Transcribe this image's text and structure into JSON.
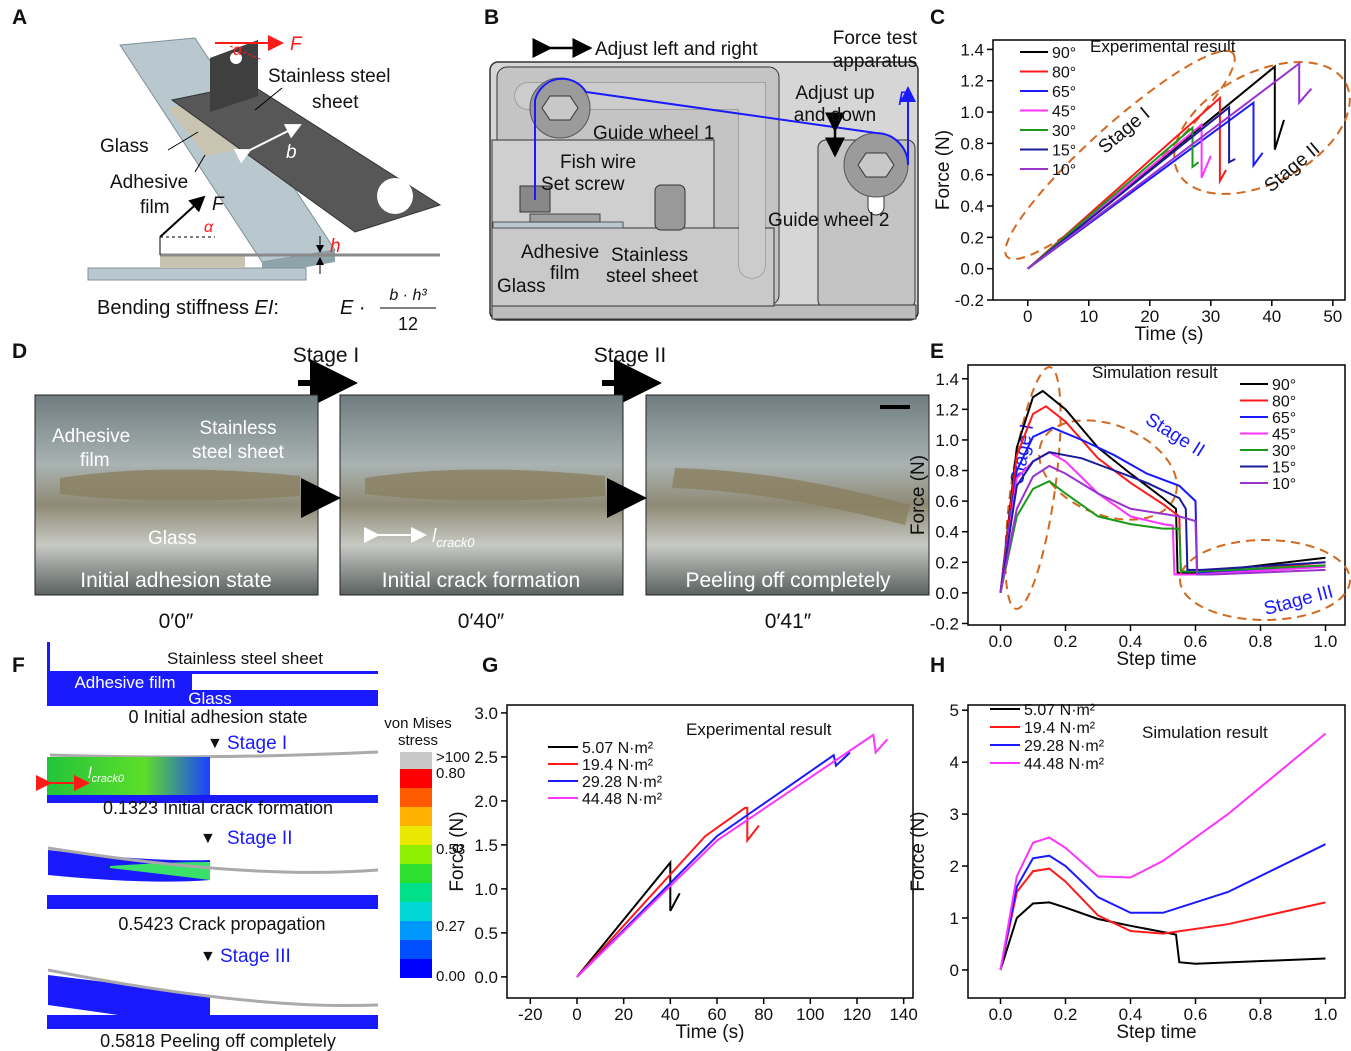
{
  "panel_labels": [
    "A",
    "B",
    "C",
    "D",
    "E",
    "F",
    "G",
    "H"
  ],
  "diagram_a": {
    "force": "F",
    "angle": "α",
    "sheet": [
      "Stainless steel",
      "sheet"
    ],
    "glass": "Glass",
    "width": "b",
    "film": [
      "Adhesive",
      "film"
    ],
    "force2": "F",
    "angle2": "α",
    "thickness": "h",
    "formula": {
      "prefix": "Bending stiffness ",
      "ei": "EI",
      "colon": ":",
      "e": "E ·",
      "numerator": "b · h³",
      "denominator": "12"
    }
  },
  "diagram_b": {
    "adjust_lr": "Adjust left and right",
    "apparatus": [
      "Force test",
      "apparatus"
    ],
    "adjust_ud": [
      "Adjust up",
      "and down"
    ],
    "force": "F",
    "wheel1": "Guide wheel 1",
    "wire": "Fish wire",
    "screw": "Set screw",
    "wheel2": "Guide wheel 2",
    "film": [
      "Adhesive",
      "film"
    ],
    "sheet": [
      "Stainless",
      "steel sheet"
    ],
    "glass": "Glass"
  },
  "photos_d": {
    "stages": [
      "Stage I",
      "Stage II"
    ],
    "film": [
      "Adhesive",
      "film"
    ],
    "sheet": [
      "Stainless",
      "steel sheet"
    ],
    "glass": "Glass",
    "crack": "l",
    "crack_sub": "crack0",
    "captions": [
      "Initial adhesion state",
      "Initial crack formation",
      "Peeling off completely"
    ],
    "times": [
      "0′0″",
      "0′40″",
      "0′41″"
    ]
  },
  "simulation_f": {
    "sheet": "Stainless steel sheet",
    "film": "Adhesive film",
    "glass": "Glass",
    "steps": [
      "0 Initial adhesion state",
      "0.1323 Initial crack formation",
      "0.5423 Crack propagation",
      "0.5818 Peeling off completely"
    ],
    "stages": [
      "Stage I",
      "Stage II",
      "Stage III"
    ],
    "crack": "l",
    "crack_sub": "crack0",
    "colorbar_title": [
      "von Mises",
      "stress"
    ],
    "colorbar_labels": [
      ">100",
      "0.80",
      "0.53",
      "0.27",
      "0.00"
    ]
  },
  "chart_data": [
    {
      "type": "line",
      "title": "Experimental result",
      "xlabel": "Time (s)",
      "ylabel": "Force (N)",
      "legend": "upper left",
      "xlim": [
        -5.7,
        52
      ],
      "ylim": [
        -0.2,
        1.46
      ],
      "xticks": [
        0,
        10,
        20,
        30,
        40,
        50
      ],
      "yticks": [
        {
          "value": -0.2,
          "label": "-0.2"
        },
        {
          "value": 0,
          "label": "0.0"
        },
        {
          "value": 0.2,
          "label": "0.2"
        },
        {
          "value": 0.4,
          "label": "0.4"
        },
        {
          "value": 0.6,
          "label": "0.6"
        },
        {
          "value": 0.8,
          "label": "0.8"
        },
        {
          "value": 1,
          "label": "1.0"
        },
        {
          "value": 1.2,
          "label": "1.2"
        },
        {
          "value": 1.4,
          "label": "1.4"
        }
      ],
      "annotations": [
        "Stage I",
        "Stage II"
      ],
      "series": [
        {
          "name": "90°",
          "color": "#000000",
          "x": [
            0,
            40.5,
            40.5,
            42
          ],
          "values": [
            0,
            1.29,
            0.76,
            0.95
          ]
        },
        {
          "name": "80°",
          "color": "#ff1a1a",
          "x": [
            0,
            31.5,
            31.5,
            32.5
          ],
          "values": [
            0,
            1.09,
            0.56,
            0.63
          ]
        },
        {
          "name": "65°",
          "color": "#1a1aff",
          "x": [
            0,
            37,
            37,
            38.5
          ],
          "values": [
            0,
            1.06,
            0.66,
            0.74
          ]
        },
        {
          "name": "45°",
          "color": "#ff33ff",
          "x": [
            0,
            28.5,
            28.5,
            30
          ],
          "values": [
            0,
            0.92,
            0.58,
            0.72
          ]
        },
        {
          "name": "30°",
          "color": "#1a9a1a",
          "x": [
            0,
            27,
            27,
            28
          ],
          "values": [
            0,
            0.9,
            0.65,
            0.68
          ]
        },
        {
          "name": "15°",
          "color": "#1a1a9a",
          "x": [
            0,
            33,
            33,
            34
          ],
          "values": [
            0,
            1.03,
            0.68,
            0.7
          ]
        },
        {
          "name": "10°",
          "color": "#9933cc",
          "x": [
            0,
            44.5,
            44.5,
            46.5
          ],
          "values": [
            0,
            1.31,
            1.06,
            1.15
          ]
        }
      ]
    },
    {
      "type": "line",
      "title": "Simulation result",
      "xlabel": "Step time",
      "ylabel": "Force (N)",
      "legend": "upper right",
      "xlim": [
        -0.1,
        1.06
      ],
      "ylim": [
        -0.21,
        1.49
      ],
      "xticks": [
        {
          "value": 0,
          "label": "0.0"
        },
        {
          "value": 0.2,
          "label": "0.2"
        },
        {
          "value": 0.4,
          "label": "0.4"
        },
        {
          "value": 0.6,
          "label": "0.6"
        },
        {
          "value": 0.8,
          "label": "0.8"
        },
        {
          "value": 1,
          "label": "1.0"
        }
      ],
      "yticks": [
        {
          "value": -0.2,
          "label": "-0.2"
        },
        {
          "value": 0,
          "label": "0.0"
        },
        {
          "value": 0.2,
          "label": "0.2"
        },
        {
          "value": 0.4,
          "label": "0.4"
        },
        {
          "value": 0.6,
          "label": "0.6"
        },
        {
          "value": 0.8,
          "label": "0.8"
        },
        {
          "value": 1,
          "label": "1.0"
        },
        {
          "value": 1.2,
          "label": "1.2"
        },
        {
          "value": 1.4,
          "label": "1.4"
        }
      ],
      "annotations": [
        "Stage I",
        "Stage II",
        "Stage III"
      ],
      "series": [
        {
          "name": "90°",
          "color": "#000000",
          "x": [
            0,
            0.05,
            0.1,
            0.13,
            0.2,
            0.3,
            0.4,
            0.5,
            0.54,
            0.545,
            0.6,
            1.0
          ],
          "values": [
            0,
            0.95,
            1.28,
            1.32,
            1.2,
            0.95,
            0.78,
            0.62,
            0.55,
            0.13,
            0.13,
            0.23
          ]
        },
        {
          "name": "80°",
          "color": "#ff1a1a",
          "x": [
            0,
            0.05,
            0.1,
            0.14,
            0.2,
            0.3,
            0.4,
            0.5,
            0.55,
            0.555,
            0.6,
            1.0
          ],
          "values": [
            0,
            0.9,
            1.17,
            1.22,
            1.12,
            0.88,
            0.72,
            0.58,
            0.5,
            0.12,
            0.12,
            0.2
          ]
        },
        {
          "name": "65°",
          "color": "#1a1aff",
          "x": [
            0,
            0.05,
            0.1,
            0.16,
            0.25,
            0.35,
            0.45,
            0.55,
            0.6,
            0.605,
            0.65,
            1.0
          ],
          "values": [
            0,
            0.8,
            1.02,
            1.08,
            1.0,
            0.9,
            0.78,
            0.7,
            0.6,
            0.13,
            0.13,
            0.18
          ]
        },
        {
          "name": "45°",
          "color": "#ff33ff",
          "x": [
            0,
            0.05,
            0.1,
            0.15,
            0.2,
            0.3,
            0.4,
            0.5,
            0.53,
            0.535,
            0.6,
            1.0
          ],
          "values": [
            0,
            0.75,
            0.86,
            0.92,
            0.86,
            0.65,
            0.5,
            0.45,
            0.44,
            0.12,
            0.12,
            0.17
          ]
        },
        {
          "name": "30°",
          "color": "#1a9a1a",
          "x": [
            0,
            0.05,
            0.1,
            0.15,
            0.2,
            0.3,
            0.4,
            0.5,
            0.55,
            0.555,
            0.6,
            1.0
          ],
          "values": [
            0,
            0.5,
            0.68,
            0.73,
            0.65,
            0.5,
            0.45,
            0.42,
            0.42,
            0.14,
            0.14,
            0.18
          ]
        },
        {
          "name": "15°",
          "color": "#1a1a9a",
          "x": [
            0,
            0.05,
            0.1,
            0.15,
            0.25,
            0.35,
            0.45,
            0.55,
            0.57,
            0.575,
            0.62,
            1.0
          ],
          "values": [
            0,
            0.7,
            0.86,
            0.92,
            0.88,
            0.8,
            0.72,
            0.62,
            0.55,
            0.15,
            0.15,
            0.2
          ]
        },
        {
          "name": "10°",
          "color": "#9933cc",
          "x": [
            0,
            0.05,
            0.1,
            0.15,
            0.2,
            0.3,
            0.4,
            0.55,
            0.6,
            0.605,
            0.65,
            1.0
          ],
          "values": [
            0,
            0.55,
            0.76,
            0.83,
            0.78,
            0.65,
            0.55,
            0.5,
            0.47,
            0.12,
            0.12,
            0.15
          ]
        }
      ]
    },
    {
      "type": "line",
      "title": "Experimental result",
      "xlabel": "Time (s)",
      "ylabel": "Force (N)",
      "legend": "upper left",
      "xlim": [
        -30,
        144
      ],
      "ylim": [
        -0.24,
        3.09
      ],
      "xticks": [
        -20,
        0,
        20,
        40,
        60,
        80,
        100,
        120,
        140
      ],
      "yticks": [
        {
          "value": 0,
          "label": "0.0"
        },
        {
          "value": 0.5,
          "label": "0.5"
        },
        {
          "value": 1,
          "label": "1.0"
        },
        {
          "value": 1.5,
          "label": "1.5"
        },
        {
          "value": 2,
          "label": "2.0"
        },
        {
          "value": 2.5,
          "label": "2.5"
        },
        {
          "value": 3,
          "label": "3.0"
        }
      ],
      "series": [
        {
          "name": "5.07 N·m²",
          "color": "#000000",
          "x": [
            0,
            40,
            40,
            44
          ],
          "values": [
            0,
            1.3,
            0.75,
            0.95
          ]
        },
        {
          "name": "19.4 N·m²",
          "color": "#ff1a1a",
          "x": [
            0,
            55,
            72,
            73,
            73,
            78
          ],
          "values": [
            0,
            1.6,
            1.92,
            1.92,
            1.55,
            1.72
          ]
        },
        {
          "name": "29.28 N·m²",
          "color": "#1a1aff",
          "x": [
            0,
            60,
            110,
            111,
            117
          ],
          "values": [
            0,
            1.6,
            2.52,
            2.4,
            2.55
          ]
        },
        {
          "name": "44.48 N·m²",
          "color": "#ff33ff",
          "x": [
            0,
            60,
            127,
            128,
            133
          ],
          "values": [
            0,
            1.55,
            2.75,
            2.55,
            2.7
          ]
        }
      ]
    },
    {
      "type": "line",
      "title": "Simulation result",
      "xlabel": "Step time",
      "ylabel": "Force (N)",
      "legend": "upper left",
      "xlim": [
        -0.1,
        1.06
      ],
      "ylim": [
        -0.54,
        5.1
      ],
      "xticks": [
        {
          "value": 0,
          "label": "0.0"
        },
        {
          "value": 0.2,
          "label": "0.2"
        },
        {
          "value": 0.4,
          "label": "0.4"
        },
        {
          "value": 0.6,
          "label": "0.6"
        },
        {
          "value": 0.8,
          "label": "0.8"
        },
        {
          "value": 1,
          "label": "1.0"
        }
      ],
      "yticks": [
        0,
        1,
        2,
        3,
        4,
        5
      ],
      "series": [
        {
          "name": "5.07 N·m²",
          "color": "#000000",
          "x": [
            0,
            0.05,
            0.1,
            0.15,
            0.2,
            0.3,
            0.4,
            0.5,
            0.54,
            0.55,
            0.6,
            1.0
          ],
          "values": [
            0,
            1.0,
            1.28,
            1.3,
            1.2,
            0.98,
            0.85,
            0.73,
            0.68,
            0.15,
            0.12,
            0.22
          ]
        },
        {
          "name": "19.4 N·m²",
          "color": "#ff1a1a",
          "x": [
            0,
            0.05,
            0.1,
            0.15,
            0.2,
            0.3,
            0.4,
            0.5,
            0.7,
            1.0
          ],
          "values": [
            0,
            1.5,
            1.9,
            1.95,
            1.7,
            1.05,
            0.75,
            0.7,
            0.88,
            1.3
          ]
        },
        {
          "name": "29.28 N·m²",
          "color": "#1a1aff",
          "x": [
            0,
            0.05,
            0.1,
            0.15,
            0.2,
            0.3,
            0.4,
            0.5,
            0.7,
            1.0
          ],
          "values": [
            0,
            1.6,
            2.15,
            2.2,
            2.0,
            1.4,
            1.1,
            1.1,
            1.5,
            2.42
          ]
        },
        {
          "name": "44.48 N·m²",
          "color": "#ff33ff",
          "x": [
            0,
            0.05,
            0.1,
            0.15,
            0.2,
            0.3,
            0.4,
            0.5,
            0.7,
            1.0
          ],
          "values": [
            0,
            1.8,
            2.45,
            2.55,
            2.35,
            1.8,
            1.78,
            2.1,
            3.0,
            4.55
          ]
        }
      ]
    }
  ]
}
